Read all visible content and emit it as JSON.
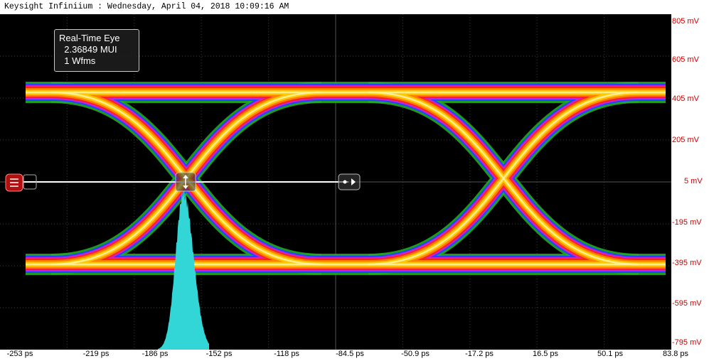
{
  "app": {
    "title": "Keysight Infiniium : Wednesday, April 04, 2018 10:09:16 AM"
  },
  "annotation": {
    "line1": "Real-Time Eye",
    "line2": "  2.36849 MUI",
    "line3": "  1 Wfms"
  },
  "y_axis": {
    "labels": [
      "805 mV",
      "605 mV",
      "405 mV",
      "205 mV",
      "5 mV",
      "-195 mV",
      "-395 mV",
      "-595 mV",
      "-795 mV"
    ],
    "color": "#cc0000"
  },
  "x_axis": {
    "labels": [
      "-253 ps",
      "-219 ps",
      "-186 ps",
      "-152 ps",
      "-118 ps",
      "-84.5 ps",
      "-50.9 ps",
      "-17.2 ps",
      "16.5 ps",
      "50.1 ps",
      "83.8 ps"
    ]
  },
  "colors": {
    "screen_background": "#000000",
    "grid": "#3a3a3a",
    "histogram": "#33d6d6",
    "trigger_marker": "#cc1111"
  },
  "icons": {
    "trigger_level": "trigger-level-marker-icon",
    "cursor_a": "cursor-handle-a-icon",
    "cursor_b": "cursor-handle-b-icon"
  }
}
